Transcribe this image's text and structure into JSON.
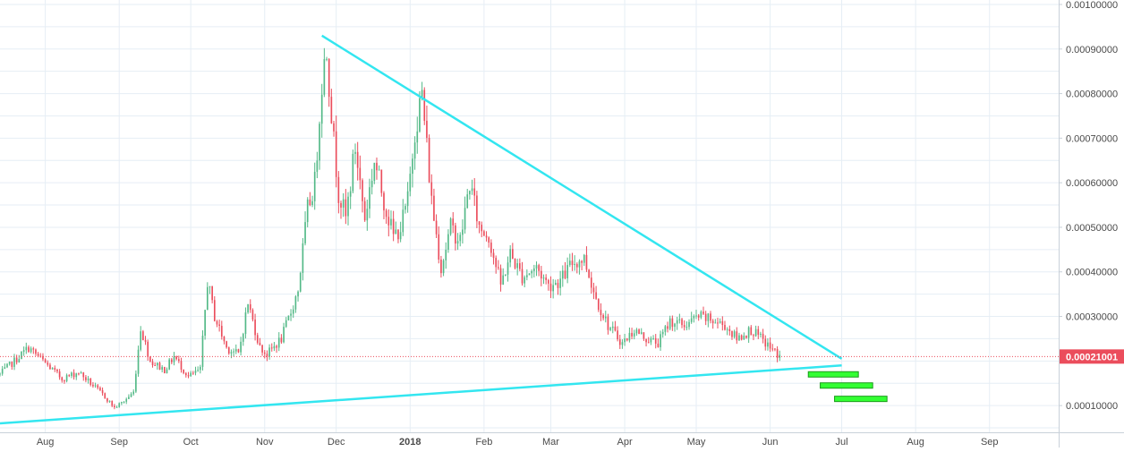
{
  "chart_data": {
    "type": "candlestick",
    "title": "",
    "xlabel": "",
    "ylabel": "",
    "ylim": [
      4e-05,
      0.00101
    ],
    "grid": true,
    "y_ticks": [
      "0.00100000",
      "0.00090000",
      "0.00080000",
      "0.00070000",
      "0.00060000",
      "0.00050000",
      "0.00040000",
      "0.00030000",
      "0.00010000"
    ],
    "y_tick_values": [
      0.001,
      0.0009,
      0.0008,
      0.0007,
      0.0006,
      0.0005,
      0.0004,
      0.0003,
      0.0001
    ],
    "x_ticks": [
      "Aug",
      "Sep",
      "Oct",
      "Nov",
      "Dec",
      "2018",
      "Feb",
      "Mar",
      "Apr",
      "May",
      "Jun",
      "Jul",
      "Aug",
      "Sep"
    ],
    "x_tick_dates": [
      "2017-08-01",
      "2017-09-01",
      "2017-10-01",
      "2017-11-01",
      "2017-12-01",
      "2018-01-01",
      "2018-02-01",
      "2018-03-01",
      "2018-04-01",
      "2018-05-01",
      "2018-06-01",
      "2018-07-01",
      "2018-08-01",
      "2018-09-01"
    ],
    "x_range": [
      "2017-07-13",
      "2018-09-30"
    ],
    "last_price": "0.00021001",
    "last_price_value": 0.00021001,
    "colors": {
      "up": "#53b987",
      "down": "#eb4d5c",
      "trendline": "#33e6f0",
      "target": "#33ff33",
      "price_line": "#eb4d5c",
      "grid": "#e6eef5"
    },
    "price_path": [
      [
        "2017-07-13",
        0.00017
      ],
      [
        "2017-07-20",
        0.000205
      ],
      [
        "2017-07-25",
        0.00023
      ],
      [
        "2017-08-01",
        0.000195
      ],
      [
        "2017-08-08",
        0.00016
      ],
      [
        "2017-08-15",
        0.000175
      ],
      [
        "2017-08-22",
        0.00014
      ],
      [
        "2017-08-26",
        0.00012
      ],
      [
        "2017-08-30",
        9.5e-05
      ],
      [
        "2017-09-03",
        0.00011
      ],
      [
        "2017-09-07",
        0.00013
      ],
      [
        "2017-09-10",
        0.000275
      ],
      [
        "2017-09-14",
        0.0002
      ],
      [
        "2017-09-20",
        0.00018
      ],
      [
        "2017-09-24",
        0.00021
      ],
      [
        "2017-09-30",
        0.000165
      ],
      [
        "2017-10-05",
        0.00018
      ],
      [
        "2017-10-08",
        0.00038
      ],
      [
        "2017-10-11",
        0.0003
      ],
      [
        "2017-10-16",
        0.00023
      ],
      [
        "2017-10-21",
        0.000215
      ],
      [
        "2017-10-25",
        0.00033
      ],
      [
        "2017-10-30",
        0.00023
      ],
      [
        "2017-11-02",
        0.000215
      ],
      [
        "2017-11-08",
        0.00025
      ],
      [
        "2017-11-12",
        0.00031
      ],
      [
        "2017-11-15",
        0.00036
      ],
      [
        "2017-11-19",
        0.00054
      ],
      [
        "2017-11-22",
        0.0006
      ],
      [
        "2017-11-25",
        0.00083
      ],
      [
        "2017-11-27",
        0.0009
      ],
      [
        "2017-11-30",
        0.00069
      ],
      [
        "2017-12-02",
        0.00058
      ],
      [
        "2017-12-05",
        0.00052
      ],
      [
        "2017-12-09",
        0.00068
      ],
      [
        "2017-12-13",
        0.00052
      ],
      [
        "2017-12-17",
        0.00065
      ],
      [
        "2017-12-21",
        0.00056
      ],
      [
        "2017-12-25",
        0.00048
      ],
      [
        "2017-12-28",
        0.0005
      ],
      [
        "2017-12-31",
        0.00056
      ],
      [
        "2018-01-03",
        0.00072
      ],
      [
        "2018-01-06",
        0.0008
      ],
      [
        "2018-01-10",
        0.00056
      ],
      [
        "2018-01-14",
        0.00041
      ],
      [
        "2018-01-18",
        0.0005
      ],
      [
        "2018-01-22",
        0.00047
      ],
      [
        "2018-01-26",
        0.0006
      ],
      [
        "2018-01-30",
        0.0005
      ],
      [
        "2018-02-03",
        0.00048
      ],
      [
        "2018-02-08",
        0.00037
      ],
      [
        "2018-02-12",
        0.00044
      ],
      [
        "2018-02-17",
        0.00039
      ],
      [
        "2018-02-23",
        0.00041
      ],
      [
        "2018-02-28",
        0.00037
      ],
      [
        "2018-03-05",
        0.00038
      ],
      [
        "2018-03-10",
        0.00042
      ],
      [
        "2018-03-15",
        0.00043
      ],
      [
        "2018-03-20",
        0.00034
      ],
      [
        "2018-03-25",
        0.00028
      ],
      [
        "2018-03-31",
        0.00024
      ],
      [
        "2018-04-05",
        0.00027
      ],
      [
        "2018-04-10",
        0.00025
      ],
      [
        "2018-04-15",
        0.00024
      ],
      [
        "2018-04-20",
        0.00029
      ],
      [
        "2018-04-26",
        0.00028
      ],
      [
        "2018-05-02",
        0.0003
      ],
      [
        "2018-05-08",
        0.00029
      ],
      [
        "2018-05-13",
        0.00028
      ],
      [
        "2018-05-18",
        0.00025
      ],
      [
        "2018-05-24",
        0.00027
      ],
      [
        "2018-05-28",
        0.00025
      ],
      [
        "2018-06-02",
        0.000225
      ],
      [
        "2018-06-05",
        0.00021
      ]
    ],
    "annotations": {
      "upper_trendline": [
        [
          "2017-11-25",
          0.00093
        ],
        [
          "2018-07-01",
          0.000205
        ]
      ],
      "lower_trendline": [
        [
          "2017-07-13",
          6e-05
        ],
        [
          "2018-07-01",
          0.00019
        ]
      ],
      "target_levels": [
        {
          "from": "2018-06-17",
          "to": "2018-07-08",
          "value": 0.00017
        },
        {
          "from": "2018-06-22",
          "to": "2018-07-14",
          "value": 0.000145
        },
        {
          "from": "2018-06-28",
          "to": "2018-07-20",
          "value": 0.000115
        }
      ]
    }
  }
}
